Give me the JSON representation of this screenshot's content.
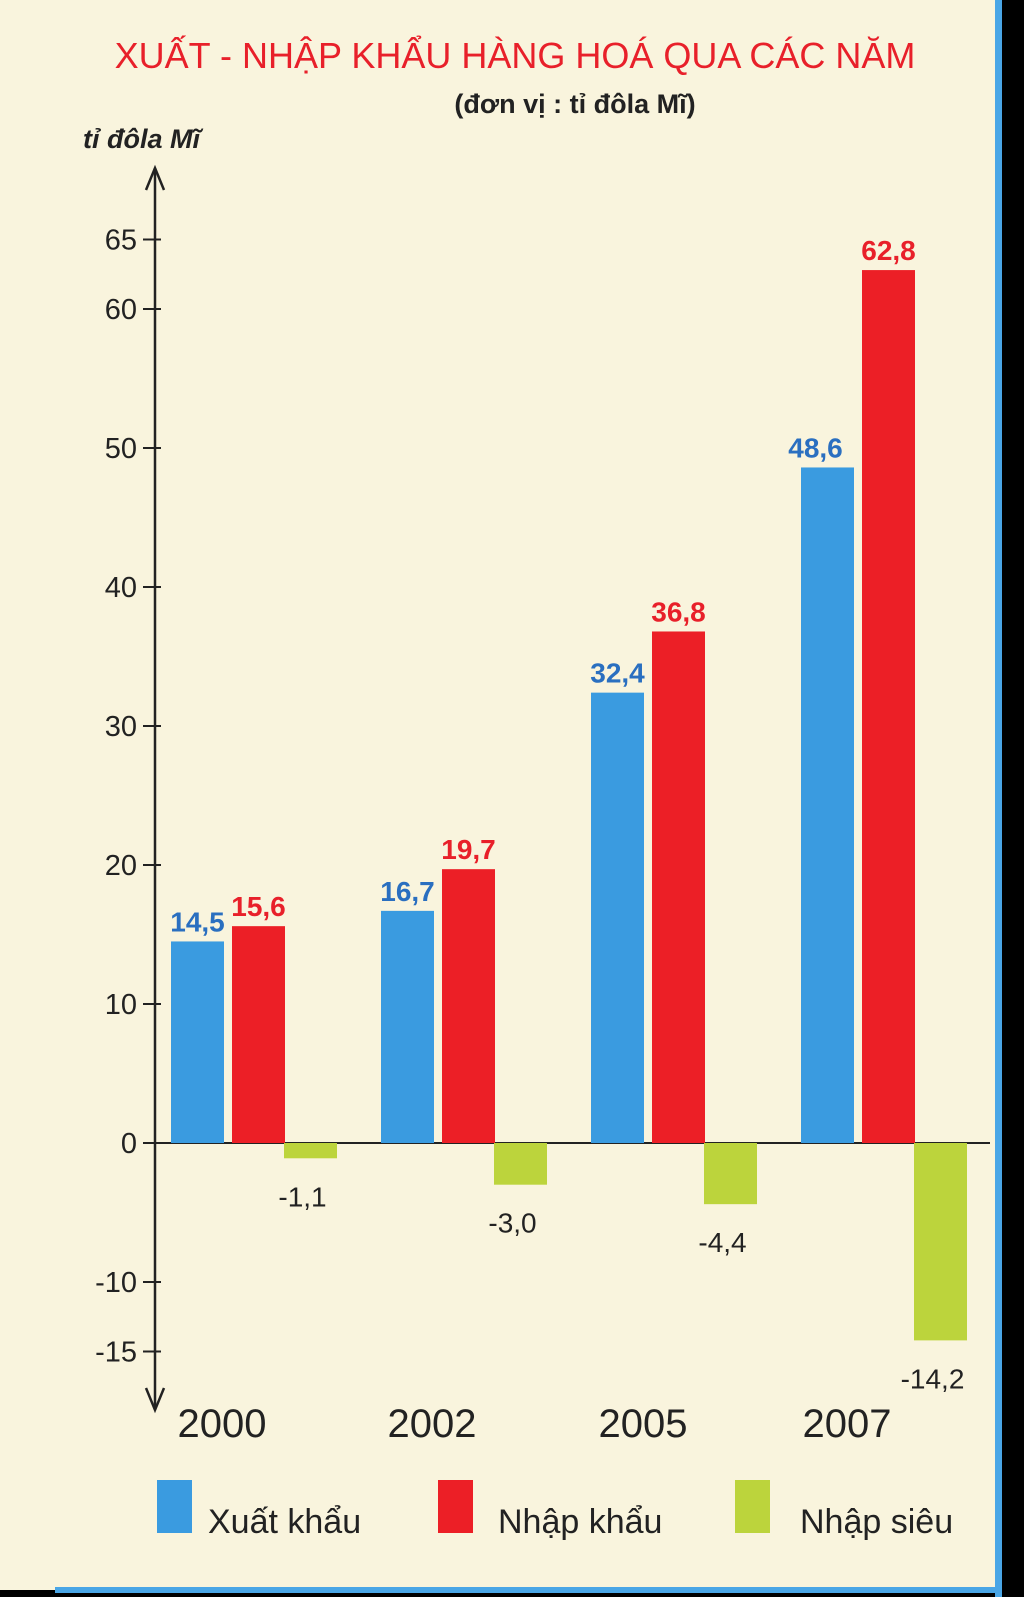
{
  "chart_data": {
    "type": "bar",
    "title": "XUẤT - NHẬP KHẨU HÀNG HOÁ QUA CÁC NĂM",
    "subtitle": "(đơn vị : tỉ đôla Mĩ)",
    "ylabel": "tỉ đôla Mĩ",
    "xlabel": "",
    "categories": [
      "2000",
      "2002",
      "2005",
      "2007"
    ],
    "series": [
      {
        "name": "Xuất khẩu",
        "values": [
          14.5,
          16.7,
          32.4,
          48.6
        ],
        "labels": [
          "14,5",
          "16,7",
          "32,4",
          "48,6"
        ],
        "color": "#3a9be0",
        "label_color": "#2a6fc0"
      },
      {
        "name": "Nhập khẩu",
        "values": [
          15.6,
          19.7,
          36.8,
          62.8
        ],
        "labels": [
          "15,6",
          "19,7",
          "36,8",
          "62,8"
        ],
        "color": "#ec1f26",
        "label_color": "#e8202a"
      },
      {
        "name": "Nhập siêu",
        "values": [
          -1.1,
          -3.0,
          -4.4,
          -14.2
        ],
        "labels": [
          "-1,1",
          "-3,0",
          "-4,4",
          "-14,2"
        ],
        "color": "#bcd43c",
        "label_color": "#222222"
      }
    ],
    "yticks": [
      -15,
      -10,
      0,
      10,
      20,
      30,
      40,
      50,
      60,
      65
    ],
    "ylim": [
      -15,
      65
    ],
    "grid": false,
    "legend_position": "bottom",
    "colors": {
      "background": "#f9f4dd",
      "title": "#e8202a",
      "frame": "#4aa6e6",
      "axis": "#222222"
    }
  }
}
